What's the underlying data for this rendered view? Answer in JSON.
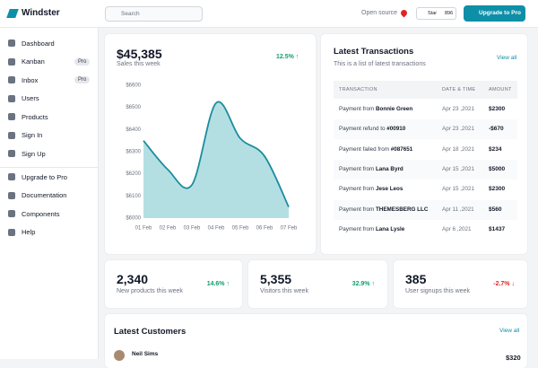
{
  "header": {
    "brand": "Windster",
    "search": "Search",
    "open_source": "Open source",
    "star": "Star",
    "star_count": "896",
    "upgrade": "Upgrade to Pro"
  },
  "nav": [
    {
      "label": "Dashboard"
    },
    {
      "label": "Kanban",
      "badge": "Pro"
    },
    {
      "label": "Inbox",
      "badge": "Pro"
    },
    {
      "label": "Users"
    },
    {
      "label": "Products"
    },
    {
      "label": "Sign In"
    },
    {
      "label": "Sign Up"
    }
  ],
  "nav2": [
    {
      "label": "Upgrade to Pro"
    },
    {
      "label": "Documentation"
    },
    {
      "label": "Components"
    },
    {
      "label": "Help"
    }
  ],
  "sales": {
    "amount": "$45,385",
    "caption": "Sales this week",
    "change": "12.5%"
  },
  "chart_data": {
    "type": "area",
    "categories": [
      "01 Feb",
      "02 Feb",
      "03 Feb",
      "04 Feb",
      "05 Feb",
      "06 Feb",
      "07 Feb"
    ],
    "values": [
      6350,
      6220,
      6150,
      6520,
      6360,
      6280,
      6050
    ],
    "color": "#1c8c9e",
    "fill": "#b3dfe3",
    "ylim": [
      6000,
      6600
    ],
    "yticks": [
      {
        "value": 6000,
        "label": "$6000"
      },
      {
        "value": 6100,
        "label": "$6100"
      },
      {
        "value": 6200,
        "label": "$6200"
      },
      {
        "value": 6300,
        "label": "$6300"
      },
      {
        "value": 6400,
        "label": "$6400"
      },
      {
        "value": 6500,
        "label": "$6500"
      },
      {
        "value": 6600,
        "label": "$6600"
      }
    ]
  },
  "transactions": {
    "title": "Latest Transactions",
    "subtitle": "This is a list of latest transactions",
    "view_all": "View all",
    "columns": [
      "TRANSACTION",
      "DATE & TIME",
      "AMOUNT"
    ],
    "rows": [
      {
        "text": "Payment from",
        "bold": "Bonnie Green",
        "date": "Apr 23 ,2021",
        "amount": "$2300"
      },
      {
        "text": "Payment refund to",
        "bold": "#00910",
        "date": "Apr 23 ,2021",
        "amount": "-$670"
      },
      {
        "text": "Payment failed from",
        "bold": "#087651",
        "date": "Apr 18 ,2021",
        "amount": "$234"
      },
      {
        "text": "Payment from",
        "bold": "Lana Byrd",
        "date": "Apr 15 ,2021",
        "amount": "$5000"
      },
      {
        "text": "Payment from",
        "bold": "Jese Leos",
        "date": "Apr 15 ,2021",
        "amount": "$2300"
      },
      {
        "text": "Payment from",
        "bold": "THEMESBERG LLC",
        "date": "Apr 11 ,2021",
        "amount": "$560"
      },
      {
        "text": "Payment from",
        "bold": "Lana Lysle",
        "date": "Apr 6 ,2021",
        "amount": "$1437"
      }
    ]
  },
  "stats": [
    {
      "value": "2,340",
      "caption": "New products this week",
      "change": "14.6%",
      "up": true
    },
    {
      "value": "5,355",
      "caption": "Visitors this week",
      "change": "32.9%",
      "up": true
    },
    {
      "value": "385",
      "caption": "User signups this week",
      "change": "-2.7%",
      "up": false
    }
  ],
  "customers": {
    "title": "Latest Customers",
    "view_all": "View all",
    "rows": [
      {
        "name": "Neil Sims",
        "amount": "$320"
      }
    ]
  }
}
